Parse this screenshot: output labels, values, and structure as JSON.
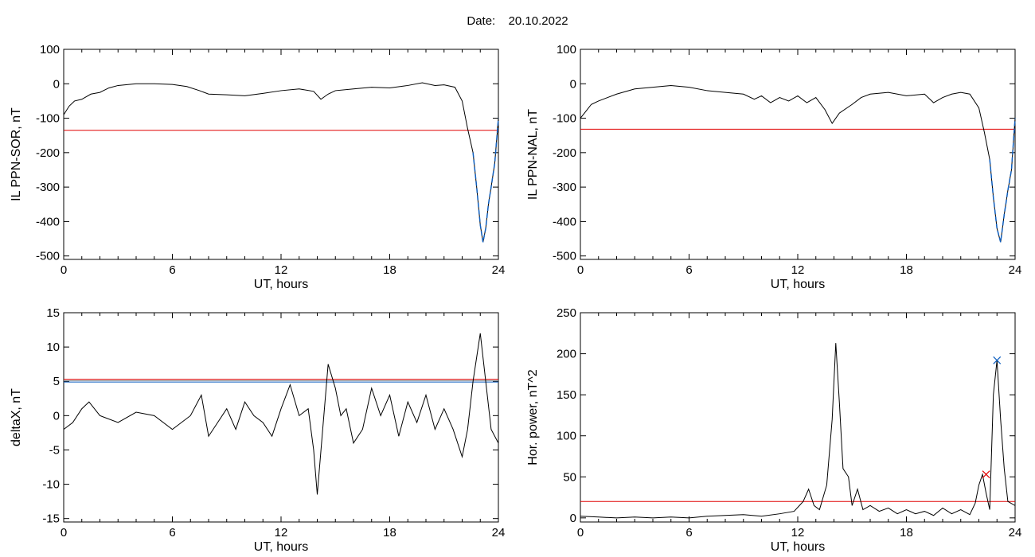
{
  "header": {
    "date_label": "Date:",
    "date_value": "20.10.2022"
  },
  "colors": {
    "series": "#000000",
    "threshold_red": "#e00000",
    "threshold_blue": "#1060c0",
    "threshold_gray": "#888888",
    "marker_green": "#00a000"
  },
  "chart_data": [
    {
      "type": "line",
      "xlabel": "UT, hours",
      "ylabel": "IL PPN-SOR, nT",
      "xlim": [
        0,
        24
      ],
      "ylim": [
        -510,
        100
      ],
      "xticks": [
        0,
        6,
        12,
        18,
        24
      ],
      "yticks": [
        100,
        0,
        -100,
        -200,
        -300,
        -400,
        -500
      ],
      "grid": false,
      "thresholds": [
        {
          "value": -135,
          "color": "#e00000"
        }
      ],
      "highlight": {
        "x_from": 22.6,
        "color": "#1060c0"
      },
      "series": [
        {
          "x": [
            0,
            0.3,
            0.6,
            1.0,
            1.5,
            2.0,
            2.5,
            3.0,
            4.0,
            5.0,
            6.0,
            6.8,
            7.5,
            8.0,
            9.0,
            10.0,
            11.0,
            12.0,
            13.0,
            13.8,
            14.2,
            14.6,
            15.0,
            16.0,
            17.0,
            18.0,
            19.0,
            19.8,
            20.5,
            21.0,
            21.6,
            22.0,
            22.3,
            22.6,
            22.8,
            23.0,
            23.15,
            23.3,
            23.45,
            23.6,
            23.8,
            24.0
          ],
          "y": [
            -90,
            -65,
            -50,
            -45,
            -30,
            -25,
            -12,
            -5,
            0,
            0,
            -2,
            -8,
            -20,
            -30,
            -32,
            -35,
            -28,
            -20,
            -15,
            -22,
            -45,
            -30,
            -20,
            -15,
            -10,
            -12,
            -5,
            3,
            -5,
            -3,
            -10,
            -50,
            -130,
            -200,
            -300,
            -410,
            -460,
            -420,
            -350,
            -300,
            -230,
            -100
          ]
        }
      ]
    },
    {
      "type": "line",
      "xlabel": "UT, hours",
      "ylabel": "IL PPN-NAL, nT",
      "xlim": [
        0,
        24
      ],
      "ylim": [
        -510,
        100
      ],
      "xticks": [
        0,
        6,
        12,
        18,
        24
      ],
      "yticks": [
        100,
        0,
        -100,
        -200,
        -300,
        -400,
        -500
      ],
      "grid": false,
      "thresholds": [
        {
          "value": -132,
          "color": "#e00000"
        }
      ],
      "highlight": {
        "x_from": 22.6,
        "color": "#1060c0"
      },
      "series": [
        {
          "x": [
            0,
            0.3,
            0.6,
            1.0,
            1.5,
            2.0,
            3.0,
            4.0,
            5.0,
            6.0,
            7.0,
            8.0,
            9.0,
            9.6,
            10.0,
            10.5,
            11.0,
            11.5,
            12.0,
            12.5,
            13.0,
            13.5,
            13.9,
            14.3,
            15.0,
            15.5,
            16.0,
            17.0,
            18.0,
            19.0,
            19.5,
            20.0,
            20.5,
            21.0,
            21.5,
            22.0,
            22.3,
            22.6,
            22.8,
            23.0,
            23.2,
            23.4,
            23.6,
            23.8,
            24.0
          ],
          "y": [
            -100,
            -80,
            -60,
            -50,
            -40,
            -30,
            -15,
            -10,
            -5,
            -10,
            -20,
            -25,
            -30,
            -45,
            -35,
            -55,
            -40,
            -50,
            -35,
            -55,
            -40,
            -75,
            -115,
            -85,
            -60,
            -40,
            -30,
            -25,
            -35,
            -30,
            -55,
            -40,
            -30,
            -25,
            -30,
            -70,
            -140,
            -220,
            -330,
            -420,
            -460,
            -380,
            -310,
            -250,
            -100
          ]
        }
      ]
    },
    {
      "type": "line",
      "xlabel": "UT, hours",
      "ylabel": "deltaX, nT",
      "xlim": [
        0,
        24
      ],
      "ylim": [
        -15.5,
        15
      ],
      "xticks": [
        0,
        6,
        12,
        18,
        24
      ],
      "yticks": [
        15,
        10,
        5,
        0,
        -5,
        -10,
        -15
      ],
      "grid": false,
      "thresholds": [
        {
          "value": 5.3,
          "color": "#e00000"
        },
        {
          "value": 5.1,
          "color": "#888888"
        },
        {
          "value": 4.9,
          "color": "#1060c0"
        }
      ],
      "series": [
        {
          "x": [
            0,
            0.5,
            1.0,
            1.4,
            2.0,
            3.0,
            4.0,
            5.0,
            6.0,
            7.0,
            7.6,
            8.0,
            8.5,
            9.0,
            9.5,
            10.0,
            10.5,
            11.0,
            11.5,
            12.0,
            12.5,
            13.0,
            13.5,
            13.8,
            14.0,
            14.3,
            14.6,
            15.0,
            15.3,
            15.6,
            16.0,
            16.5,
            17.0,
            17.5,
            18.0,
            18.5,
            19.0,
            19.5,
            20.0,
            20.5,
            21.0,
            21.5,
            22.0,
            22.3,
            22.6,
            23.0,
            23.3,
            23.6,
            24.0
          ],
          "y": [
            -2,
            -1,
            1,
            2,
            0,
            -1,
            0.5,
            0,
            -2,
            0,
            3,
            -3,
            -1,
            1,
            -2,
            2,
            0,
            -1,
            -3,
            1,
            4.5,
            0,
            1,
            -5,
            -11.5,
            -2,
            7.5,
            4,
            0,
            1,
            -4,
            -2,
            4,
            0,
            3,
            -3,
            2,
            -1,
            3,
            -2,
            1,
            -2,
            -6,
            -2,
            5,
            12,
            5,
            -2,
            -4
          ]
        }
      ]
    },
    {
      "type": "line",
      "xlabel": "UT, hours",
      "ylabel": "Hor. power, nT^2",
      "xlim": [
        0,
        24
      ],
      "ylim": [
        -5,
        250
      ],
      "xticks": [
        0,
        6,
        12,
        18,
        24
      ],
      "yticks": [
        250,
        200,
        150,
        100,
        50,
        0
      ],
      "grid": false,
      "thresholds": [
        {
          "value": 20,
          "color": "#e00000"
        }
      ],
      "markers": [
        {
          "x": 22.4,
          "y": 53,
          "color": "#e00000"
        },
        {
          "x": 23.0,
          "y": 192,
          "color": "#1060c0"
        }
      ],
      "series": [
        {
          "x": [
            0,
            1,
            2,
            3,
            4,
            5,
            6,
            7,
            8,
            9,
            10,
            11,
            11.8,
            12.3,
            12.6,
            12.9,
            13.2,
            13.6,
            13.9,
            14.1,
            14.3,
            14.5,
            14.8,
            15.0,
            15.3,
            15.6,
            16.0,
            16.5,
            17.0,
            17.5,
            18.0,
            18.5,
            19.0,
            19.5,
            20.0,
            20.5,
            21.0,
            21.5,
            21.8,
            22.0,
            22.2,
            22.4,
            22.6,
            22.8,
            23.0,
            23.2,
            23.4,
            23.6,
            24.0
          ],
          "y": [
            2,
            1,
            0,
            1,
            0,
            1,
            0,
            2,
            3,
            4,
            2,
            5,
            8,
            20,
            35,
            15,
            10,
            40,
            120,
            213,
            140,
            60,
            50,
            15,
            35,
            10,
            15,
            8,
            12,
            5,
            10,
            5,
            8,
            3,
            12,
            5,
            10,
            4,
            18,
            40,
            53,
            30,
            10,
            150,
            192,
            120,
            60,
            20,
            15
          ]
        }
      ]
    }
  ]
}
